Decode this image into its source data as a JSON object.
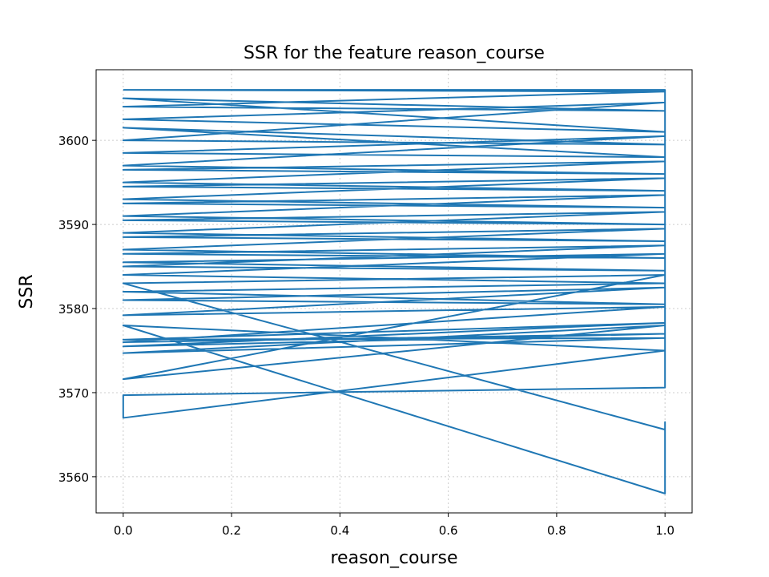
{
  "chart_data": {
    "type": "line",
    "title": "SSR for the feature reason_course",
    "x_label": "reason_course",
    "y_label": "SSR",
    "xlim": [
      -0.05,
      1.05
    ],
    "xticks": [
      {
        "value": 0,
        "label": "0.0"
      },
      {
        "value": 0.2,
        "label": "0.2"
      },
      {
        "value": 0.4,
        "label": "0.4"
      },
      {
        "value": 0.6,
        "label": "0.6"
      },
      {
        "value": 0.8,
        "label": "0.8"
      },
      {
        "value": 1,
        "label": "1.0"
      }
    ],
    "ylim": [
      3555.7,
      3608.4
    ],
    "yticks": [
      3560,
      3570,
      3580,
      3590,
      3600
    ],
    "grid": true,
    "series": [
      {
        "color": "#1f77b4",
        "x": [
          0,
          1,
          0,
          1,
          0,
          1,
          0,
          1,
          0,
          1,
          0,
          1,
          0,
          1,
          0,
          1,
          0,
          1,
          0,
          1,
          0,
          1,
          0,
          1,
          0,
          1,
          0,
          1,
          0,
          1,
          0,
          1,
          0,
          1,
          0,
          1,
          0,
          1,
          0,
          1,
          0,
          1,
          0,
          1,
          0,
          1,
          0,
          1,
          0,
          1,
          0,
          1,
          0,
          1,
          0,
          1,
          0,
          1,
          0,
          1,
          0,
          1,
          1,
          1,
          0,
          1,
          0,
          0,
          1,
          1,
          0
        ],
        "values": [
          3606,
          3605.8,
          3604,
          3603.5,
          3605,
          3601,
          3602.5,
          3604.5,
          3600,
          3599.5,
          3601.5,
          3598,
          3598.5,
          3600.5,
          3597,
          3596,
          3596.5,
          3597.5,
          3595,
          3594,
          3594.5,
          3595.5,
          3593,
          3592,
          3592.5,
          3593.5,
          3591,
          3590,
          3590.5,
          3591.5,
          3589,
          3588,
          3588.5,
          3589.5,
          3587,
          3586,
          3586.5,
          3587.5,
          3585,
          3584.5,
          3585.5,
          3586.5,
          3584,
          3583,
          3582,
          3580.5,
          3581,
          3582.5,
          3579.2,
          3580.2,
          3576,
          3577,
          3575.5,
          3578.3,
          3576.3,
          3576.5,
          3574.7,
          3578,
          3571.6,
          3584,
          3583,
          3565.6,
          3566.5,
          3558,
          3578,
          3575,
          3567,
          3569.7,
          3570.6,
          3606,
          3606
        ]
      }
    ]
  }
}
